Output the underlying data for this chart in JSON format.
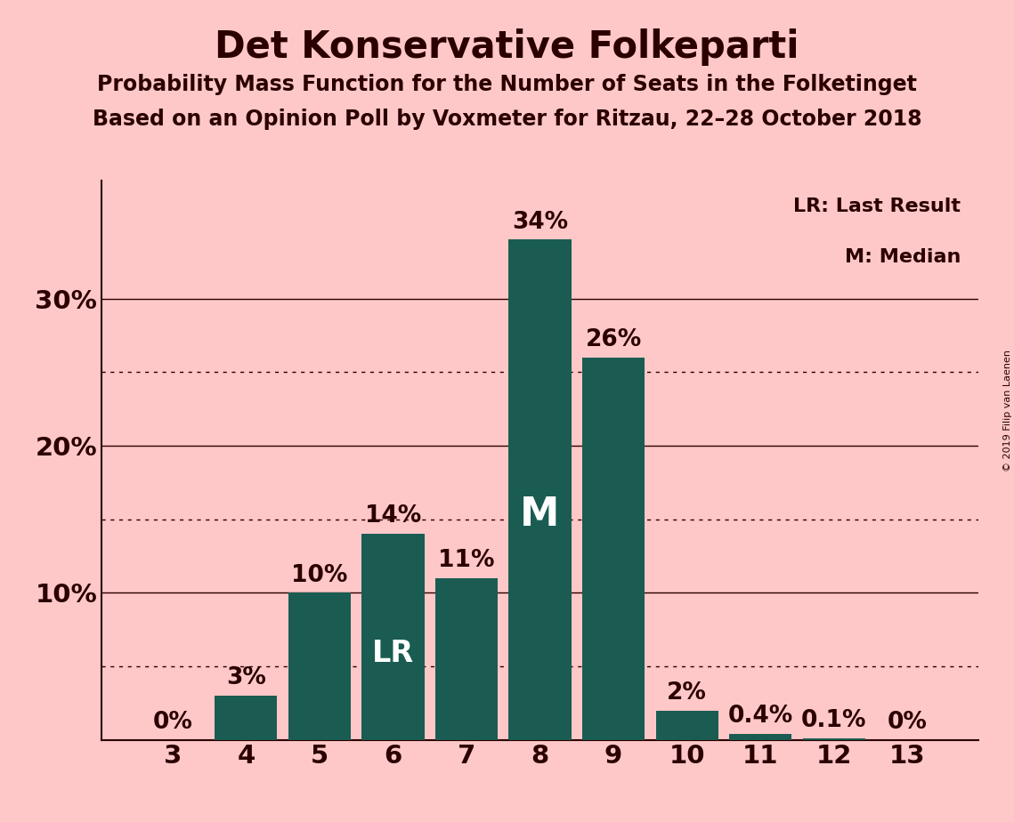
{
  "title": "Det Konservative Folkeparti",
  "subtitle1": "Probability Mass Function for the Number of Seats in the Folketinget",
  "subtitle2": "Based on an Opinion Poll by Voxmeter for Ritzau, 22–28 October 2018",
  "copyright": "© 2019 Filip van Laenen",
  "categories": [
    3,
    4,
    5,
    6,
    7,
    8,
    9,
    10,
    11,
    12,
    13
  ],
  "values": [
    0.0,
    3.0,
    10.0,
    14.0,
    11.0,
    34.0,
    26.0,
    2.0,
    0.4,
    0.1,
    0.0
  ],
  "bar_labels": [
    "0%",
    "3%",
    "10%",
    "14%",
    "11%",
    "34%",
    "26%",
    "2%",
    "0.4%",
    "0.1%",
    "0%"
  ],
  "bar_color": "#1a5c52",
  "background_color": "#ffc8c8",
  "text_color": "#2b0000",
  "lr_bar_index": 3,
  "median_bar_index": 5,
  "lr_label": "LR",
  "median_label": "M",
  "legend_lr": "LR: Last Result",
  "legend_m": "M: Median",
  "yticks_solid": [
    10,
    20,
    30
  ],
  "yticks_dotted": [
    5,
    15,
    25
  ],
  "ylim": [
    0,
    38
  ],
  "title_fontsize": 30,
  "subtitle_fontsize": 17,
  "bar_label_fontsize": 19,
  "axis_label_fontsize": 21,
  "inner_label_fontsize_lr": 24,
  "inner_label_fontsize_m": 32,
  "legend_fontsize": 16,
  "copyright_fontsize": 8
}
